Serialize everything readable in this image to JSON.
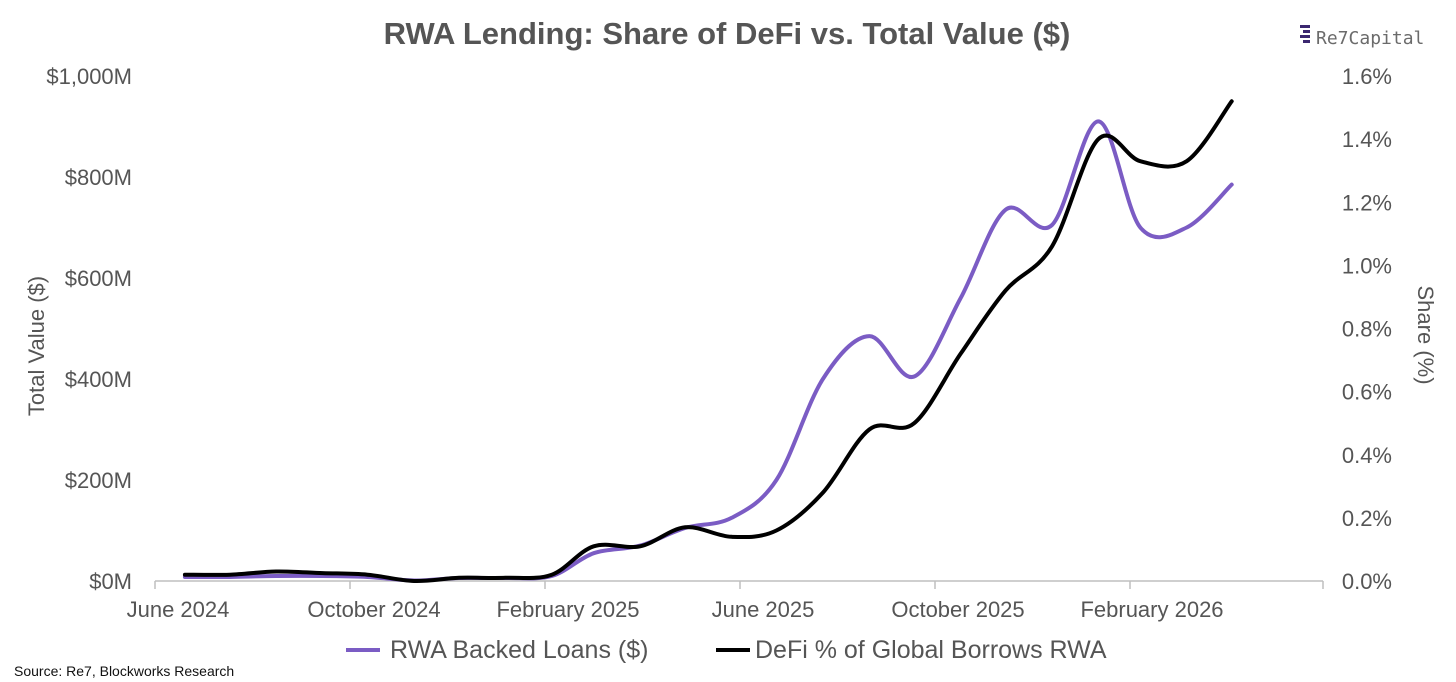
{
  "chart_data": {
    "type": "line",
    "title": "RWA Lending: Share of DeFi vs. Total Value ($)",
    "ylabel_left": "Total Value ($)",
    "ylabel_right": "Share (%)",
    "x_ticks": [
      "June 2024",
      "October 2024",
      "February 2025",
      "June 2025",
      "October 2025",
      "February 2026"
    ],
    "y_left_ticks": [
      "$0M",
      "$200M",
      "$400M",
      "$600M",
      "$800M",
      "$1,000M"
    ],
    "y_right_ticks": [
      "0.0%",
      "0.2%",
      "0.4%",
      "0.6%",
      "0.8%",
      "1.0%",
      "1.2%",
      "1.4%",
      "1.6%"
    ],
    "ylim_left": [
      0,
      1000
    ],
    "ylim_right": [
      0,
      1.6
    ],
    "legend_position": "bottom",
    "grid": false,
    "series": [
      {
        "name": "RWA Backed Loans ($)",
        "axis": "left",
        "unit": "$M",
        "color": "#7b5cc4",
        "x": [
          "2024-06-01",
          "2024-07-01",
          "2024-08-01",
          "2024-09-01",
          "2024-10-01",
          "2024-11-01",
          "2024-12-01",
          "2025-01-01",
          "2025-02-01",
          "2025-03-01",
          "2025-04-01",
          "2025-05-01",
          "2025-06-01",
          "2025-07-01",
          "2025-08-01",
          "2025-09-01",
          "2025-10-01",
          "2025-11-01",
          "2025-12-01",
          "2026-01-01",
          "2026-02-01",
          "2026-03-01",
          "2026-04-01",
          "2026-05-01"
        ],
        "values": [
          8,
          8,
          10,
          10,
          8,
          1,
          6,
          6,
          10,
          55,
          70,
          105,
          125,
          200,
          400,
          485,
          405,
          560,
          735,
          705,
          910,
          700,
          700,
          785
        ]
      },
      {
        "name": "DeFi % of Global Borrows RWA",
        "axis": "right",
        "unit": "%",
        "color": "#000000",
        "x": [
          "2024-06-01",
          "2024-07-01",
          "2024-08-01",
          "2024-09-01",
          "2024-10-01",
          "2024-11-01",
          "2024-12-01",
          "2025-01-01",
          "2025-02-01",
          "2025-03-01",
          "2025-04-01",
          "2025-05-01",
          "2025-06-01",
          "2025-07-01",
          "2025-08-01",
          "2025-09-01",
          "2025-10-01",
          "2025-11-01",
          "2025-12-01",
          "2026-01-01",
          "2026-02-01",
          "2026-03-01",
          "2026-04-01",
          "2026-05-01"
        ],
        "values": [
          0.02,
          0.02,
          0.03,
          0.025,
          0.02,
          0.0,
          0.01,
          0.01,
          0.02,
          0.11,
          0.11,
          0.17,
          0.14,
          0.16,
          0.28,
          0.48,
          0.5,
          0.72,
          0.92,
          1.06,
          1.4,
          1.33,
          1.33,
          1.52
        ]
      }
    ]
  },
  "source": "Source: Re7, Blockworks Research",
  "brand": {
    "name_prefix": "Re7",
    "name_suffix": "Capital",
    "logo_icon": "stacked-bars-logo-icon",
    "logo_color": "#3b2770"
  }
}
